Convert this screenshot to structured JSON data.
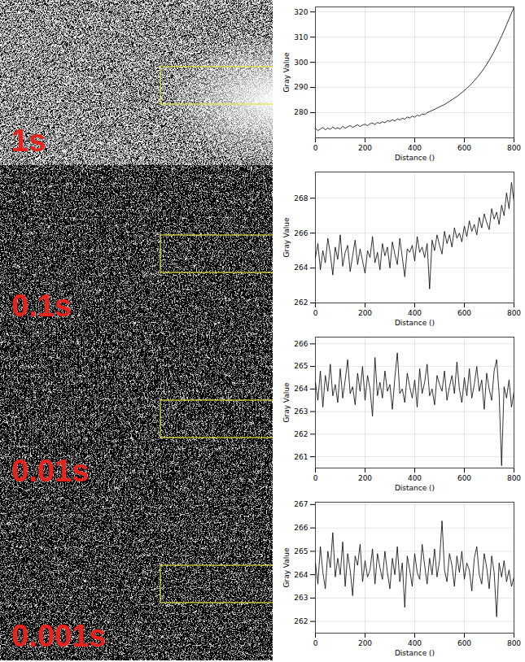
{
  "image_labels": [
    "1s",
    "0.1s",
    "0.01s",
    "0.001s"
  ],
  "chart_data": [
    {
      "type": "line",
      "x_label": "Distance ()",
      "y_label": "Gray Value",
      "color": "#000000",
      "grid": true,
      "xlim": [
        0,
        800
      ],
      "xticks": [
        0,
        200,
        400,
        600,
        800
      ],
      "ylim": [
        270,
        322
      ],
      "yticks": [
        280,
        290,
        300,
        310,
        320
      ],
      "x": [
        0,
        10,
        20,
        30,
        40,
        50,
        60,
        70,
        80,
        90,
        100,
        110,
        120,
        130,
        140,
        150,
        160,
        170,
        180,
        190,
        200,
        210,
        220,
        230,
        240,
        250,
        260,
        270,
        280,
        290,
        300,
        310,
        320,
        330,
        340,
        350,
        360,
        370,
        380,
        390,
        400,
        410,
        420,
        430,
        440,
        450,
        460,
        470,
        480,
        490,
        500,
        510,
        520,
        530,
        540,
        550,
        560,
        570,
        580,
        590,
        600,
        610,
        620,
        630,
        640,
        650,
        660,
        670,
        680,
        690,
        700,
        710,
        720,
        730,
        740,
        750,
        760,
        770,
        780,
        790,
        800
      ],
      "values": [
        273.8,
        272.9,
        273.5,
        274.1,
        273.2,
        273.9,
        273.4,
        274.3,
        273.6,
        274.0,
        273.5,
        274.6,
        273.8,
        274.4,
        274.9,
        274.1,
        274.7,
        275.2,
        274.5,
        275.1,
        275.4,
        274.8,
        275.6,
        275.9,
        275.3,
        276.1,
        275.7,
        276.4,
        276.0,
        276.8,
        276.5,
        277.2,
        276.7,
        277.5,
        277.1,
        277.8,
        277.4,
        278.3,
        277.9,
        278.6,
        278.2,
        279.0,
        278.7,
        279.5,
        279.2,
        280.0,
        280.4,
        280.9,
        281.3,
        281.8,
        282.3,
        282.8,
        283.2,
        283.9,
        284.5,
        285.1,
        285.8,
        286.4,
        287.2,
        288.0,
        288.8,
        289.7,
        290.6,
        291.6,
        292.7,
        293.8,
        295.0,
        296.3,
        297.7,
        299.2,
        300.8,
        302.5,
        304.3,
        306.3,
        308.3,
        310.4,
        312.6,
        314.9,
        317.2,
        319.6,
        321.8
      ]
    },
    {
      "type": "line",
      "x_label": "Distance ()",
      "y_label": "Gray Value",
      "color": "#000000",
      "grid": true,
      "xlim": [
        0,
        800
      ],
      "xticks": [
        0,
        200,
        400,
        600,
        800
      ],
      "ylim": [
        262,
        269.5
      ],
      "yticks": [
        262,
        264,
        266,
        268
      ],
      "x": [
        0,
        10,
        20,
        30,
        40,
        50,
        60,
        70,
        80,
        90,
        100,
        110,
        120,
        130,
        140,
        150,
        160,
        170,
        180,
        190,
        200,
        210,
        220,
        230,
        240,
        250,
        260,
        270,
        280,
        290,
        300,
        310,
        320,
        330,
        340,
        350,
        360,
        370,
        380,
        390,
        400,
        410,
        420,
        430,
        440,
        450,
        460,
        470,
        480,
        490,
        500,
        510,
        520,
        530,
        540,
        550,
        560,
        570,
        580,
        590,
        600,
        610,
        620,
        630,
        640,
        650,
        660,
        670,
        680,
        690,
        700,
        710,
        720,
        730,
        740,
        750,
        760,
        770,
        780,
        790,
        800
      ],
      "values": [
        264.6,
        265.4,
        263.9,
        265.0,
        264.3,
        265.7,
        264.8,
        263.6,
        265.2,
        264.5,
        265.9,
        264.1,
        264.9,
        265.3,
        263.8,
        264.7,
        265.6,
        264.2,
        265.1,
        264.4,
        263.7,
        265.0,
        264.6,
        265.8,
        264.3,
        264.9,
        263.9,
        265.4,
        264.7,
        265.2,
        264.0,
        265.5,
        264.8,
        264.2,
        265.7,
        264.6,
        263.5,
        265.1,
        264.9,
        265.3,
        264.4,
        265.8,
        264.9,
        265.2,
        264.6,
        265.4,
        262.8,
        265.6,
        265.0,
        265.9,
        265.3,
        264.8,
        266.1,
        265.4,
        265.9,
        265.2,
        266.3,
        265.7,
        266.0,
        265.5,
        266.4,
        265.8,
        266.7,
        266.1,
        266.5,
        265.9,
        266.9,
        266.3,
        267.1,
        266.6,
        266.2,
        267.4,
        266.8,
        267.2,
        266.5,
        267.6,
        267.0,
        268.3,
        267.4,
        268.9,
        267.8
      ]
    },
    {
      "type": "line",
      "x_label": "Distance ()",
      "y_label": "Gray Value",
      "color": "#000000",
      "grid": true,
      "xlim": [
        0,
        800
      ],
      "xticks": [
        0,
        200,
        400,
        600,
        800
      ],
      "ylim": [
        260.5,
        266.3
      ],
      "yticks": [
        261,
        262,
        263,
        264,
        265,
        266
      ],
      "x": [
        0,
        10,
        20,
        30,
        40,
        50,
        60,
        70,
        80,
        90,
        100,
        110,
        120,
        130,
        140,
        150,
        160,
        170,
        180,
        190,
        200,
        210,
        220,
        230,
        240,
        250,
        260,
        270,
        280,
        290,
        300,
        310,
        320,
        330,
        340,
        350,
        360,
        370,
        380,
        390,
        400,
        410,
        420,
        430,
        440,
        450,
        460,
        470,
        480,
        490,
        500,
        510,
        520,
        530,
        540,
        550,
        560,
        570,
        580,
        590,
        600,
        610,
        620,
        630,
        640,
        650,
        660,
        670,
        680,
        690,
        700,
        710,
        720,
        730,
        740,
        750,
        760,
        770,
        780,
        790,
        800
      ],
      "values": [
        264.3,
        263.5,
        264.8,
        263.2,
        264.6,
        263.9,
        265.1,
        263.7,
        264.2,
        263.4,
        264.9,
        263.6,
        264.4,
        265.3,
        263.8,
        264.1,
        263.3,
        264.7,
        263.9,
        265.0,
        263.5,
        264.6,
        264.0,
        262.8,
        265.4,
        263.7,
        264.3,
        263.6,
        264.8,
        263.9,
        264.2,
        263.1,
        264.5,
        265.6,
        263.8,
        264.0,
        263.4,
        264.7,
        264.1,
        263.6,
        264.4,
        263.2,
        264.9,
        263.8,
        264.3,
        265.1,
        263.7,
        264.0,
        263.3,
        264.6,
        264.2,
        263.9,
        264.8,
        263.5,
        264.1,
        264.6,
        263.8,
        265.2,
        264.0,
        263.4,
        264.5,
        263.7,
        264.9,
        263.6,
        264.2,
        265.0,
        263.9,
        264.4,
        263.1,
        264.7,
        264.0,
        263.5,
        264.8,
        265.3,
        263.8,
        260.6,
        264.1,
        263.6,
        264.4,
        263.2,
        263.9
      ]
    },
    {
      "type": "line",
      "x_label": "Distance ()",
      "y_label": "Gray Value",
      "color": "#000000",
      "grid": true,
      "xlim": [
        0,
        800
      ],
      "xticks": [
        0,
        200,
        400,
        600,
        800
      ],
      "ylim": [
        261.5,
        267.1
      ],
      "yticks": [
        262,
        263,
        264,
        265,
        266,
        267
      ],
      "x": [
        0,
        10,
        20,
        30,
        40,
        50,
        60,
        70,
        80,
        90,
        100,
        110,
        120,
        130,
        140,
        150,
        160,
        170,
        180,
        190,
        200,
        210,
        220,
        230,
        240,
        250,
        260,
        270,
        280,
        290,
        300,
        310,
        320,
        330,
        340,
        350,
        360,
        370,
        380,
        390,
        400,
        410,
        420,
        430,
        440,
        450,
        460,
        470,
        480,
        490,
        500,
        510,
        520,
        530,
        540,
        550,
        560,
        570,
        580,
        590,
        600,
        610,
        620,
        630,
        640,
        650,
        660,
        670,
        680,
        690,
        700,
        710,
        720,
        730,
        740,
        750,
        760,
        770,
        780,
        790,
        800
      ],
      "values": [
        264.5,
        263.6,
        265.2,
        264.1,
        263.4,
        265.0,
        264.3,
        265.8,
        263.9,
        264.7,
        264.0,
        265.4,
        263.5,
        264.9,
        264.2,
        263.1,
        264.8,
        264.4,
        265.3,
        263.7,
        264.6,
        263.9,
        264.2,
        265.1,
        263.6,
        264.9,
        264.3,
        263.8,
        265.0,
        264.1,
        263.4,
        264.7,
        264.0,
        265.2,
        263.7,
        264.5,
        262.6,
        264.8,
        264.2,
        263.5,
        264.9,
        264.1,
        263.8,
        265.3,
        264.4,
        263.6,
        264.7,
        264.0,
        265.1,
        263.9,
        264.6,
        266.3,
        264.2,
        263.7,
        264.9,
        264.4,
        263.5,
        264.8,
        264.1,
        265.0,
        263.8,
        264.5,
        264.2,
        263.3,
        264.7,
        265.2,
        264.0,
        263.6,
        264.9,
        264.3,
        263.4,
        264.8,
        264.1,
        262.2,
        264.5,
        263.9,
        264.6,
        263.7,
        264.2,
        263.5,
        263.9
      ]
    }
  ]
}
